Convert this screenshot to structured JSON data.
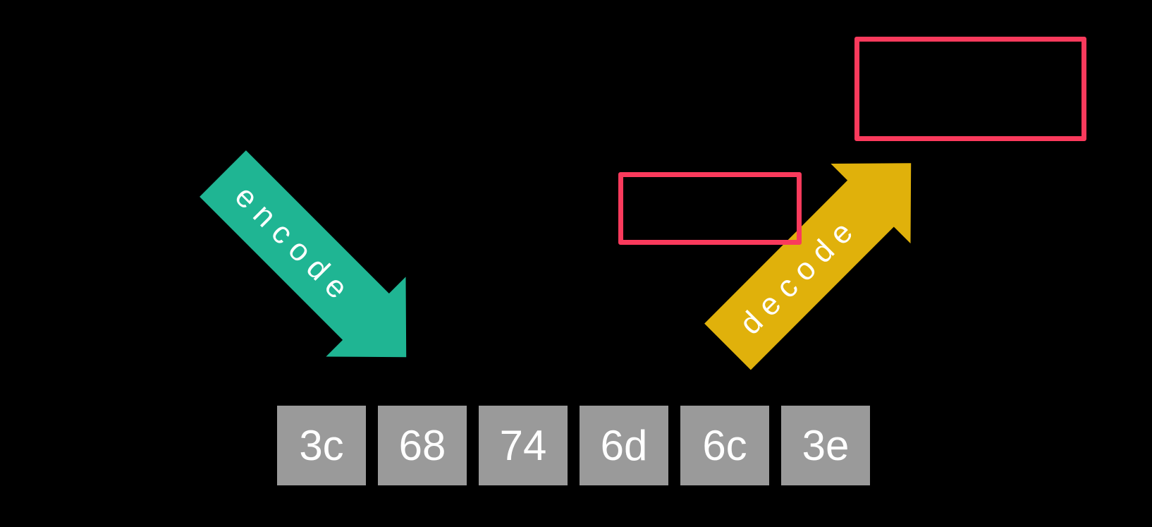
{
  "colors": {
    "background": "#000000",
    "encode-arrow": "#1fb593",
    "decode-arrow": "#e0b10b",
    "outline-box": "#fa3a5c",
    "byte-box": "#9a9a9a",
    "text": "#ffffff"
  },
  "arrows": {
    "encode": {
      "label": "encode"
    },
    "decode": {
      "label": "decode"
    }
  },
  "bytes": {
    "values": [
      "3c",
      "68",
      "74",
      "6d",
      "6c",
      "3e"
    ]
  }
}
